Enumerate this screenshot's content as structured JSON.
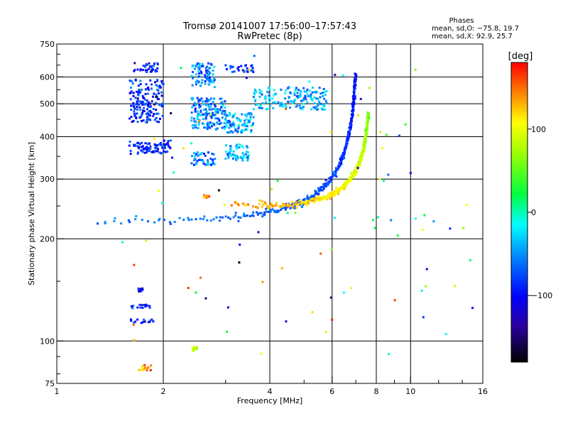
{
  "chart_data": {
    "type": "scatter",
    "title": "Tromsø 20141007 17:56:00–17:57:43",
    "subtitle": "RwPretec (8p)",
    "stats": {
      "header": "Phases",
      "line1": "mean, sd,O: −75.8, 19.7",
      "line2": "mean, sd,X:  92.9, 25.7"
    },
    "xlabel": "Frequency [MHz]",
    "ylabel": "Stationary phase Virtual Height [km]",
    "xscale": "log",
    "yscale": "log",
    "xlim": [
      1,
      16
    ],
    "ylim": [
      75,
      750
    ],
    "xticks": [
      1,
      2,
      4,
      6,
      8,
      10,
      16
    ],
    "xtick_labels": [
      "1",
      "2",
      "4",
      "6",
      "8",
      "10",
      "16"
    ],
    "yticks": [
      75,
      100,
      200,
      300,
      400,
      500,
      600,
      750
    ],
    "ytick_labels": [
      "75",
      "100",
      "200",
      "300",
      "400",
      "500",
      "600",
      "750"
    ],
    "x_minor_ticks": [
      3,
      5,
      7,
      9,
      12,
      14
    ],
    "y_minor_ticks": [
      80,
      90,
      150,
      250,
      350,
      450,
      550,
      650,
      700
    ],
    "grid": true,
    "colorbar": {
      "label": "[deg]",
      "range": [
        -180,
        180
      ],
      "ticks": [
        100,
        0,
        -100
      ],
      "tick_labels": [
        "100",
        "0",
        "−100"
      ]
    },
    "traces": [
      {
        "name": "O trace",
        "x_start": 1.3,
        "x_end": 7.0,
        "h_start": 225,
        "h_end": 610,
        "phase_start": -60,
        "phase_end": -95,
        "asymptote": 7.2
      },
      {
        "name": "X trace",
        "x_start": 3.6,
        "x_end": 7.6,
        "h_start": 250,
        "h_end": 470,
        "phase_start": 135,
        "phase_end": 60,
        "asymptote": 7.8
      }
    ],
    "clusters": [
      {
        "x": [
          1.65,
          1.95
        ],
        "h": [
          620,
          660
        ],
        "phase": -95
      },
      {
        "x": [
          1.6,
          2.0
        ],
        "h": [
          440,
          590
        ],
        "phase": -85
      },
      {
        "x": [
          1.6,
          2.1
        ],
        "h": [
          355,
          390
        ],
        "phase": -95
      },
      {
        "x": [
          2.4,
          2.8
        ],
        "h": [
          560,
          660
        ],
        "phase": -60
      },
      {
        "x": [
          2.4,
          3.0
        ],
        "h": [
          420,
          520
        ],
        "phase": -55
      },
      {
        "x": [
          2.4,
          2.8
        ],
        "h": [
          330,
          360
        ],
        "phase": -60
      },
      {
        "x": [
          3.0,
          3.6
        ],
        "h": [
          410,
          470
        ],
        "phase": -40
      },
      {
        "x": [
          3.0,
          3.5
        ],
        "h": [
          340,
          380
        ],
        "phase": -40
      },
      {
        "x": [
          3.0,
          3.6
        ],
        "h": [
          620,
          650
        ],
        "phase": -80
      },
      {
        "x": [
          3.6,
          5.8
        ],
        "h": [
          480,
          560
        ],
        "phase": -40
      },
      {
        "x": [
          1.6,
          1.85
        ],
        "h": [
          125,
          128
        ],
        "phase": -95
      },
      {
        "x": [
          1.6,
          1.9
        ],
        "h": [
          113,
          116
        ],
        "phase": -95
      },
      {
        "x": [
          1.7,
          1.75
        ],
        "h": [
          140,
          143
        ],
        "phase": -110
      },
      {
        "x": [
          1.7,
          1.85
        ],
        "h": [
          82,
          85
        ],
        "phase": 140
      },
      {
        "x": [
          2.4,
          2.5
        ],
        "h": [
          93,
          96
        ],
        "phase": 90
      },
      {
        "x": [
          3.1,
          3.5
        ],
        "h": [
          250,
          256
        ],
        "phase": 140
      },
      {
        "x": [
          2.6,
          2.7
        ],
        "h": [
          264,
          270
        ],
        "phase": 150
      }
    ]
  }
}
